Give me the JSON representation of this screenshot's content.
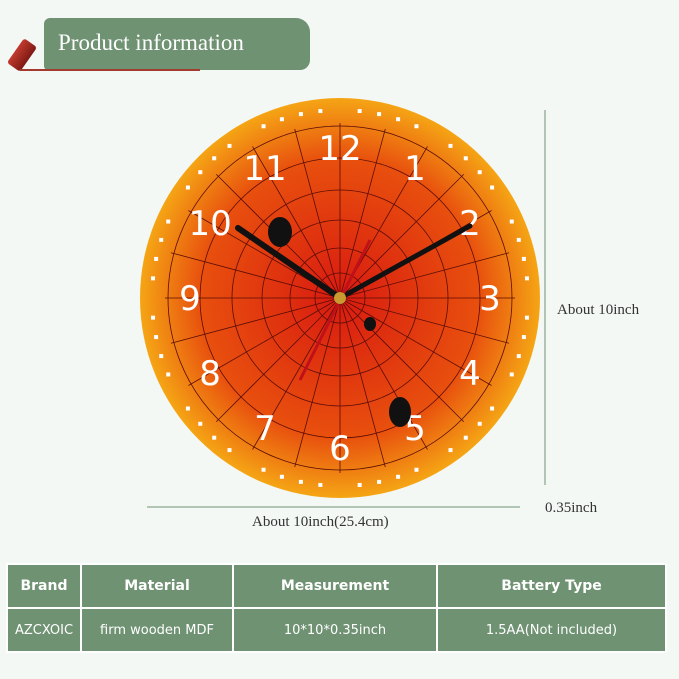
{
  "banner": {
    "title": "Product information"
  },
  "clock": {
    "numerals": [
      "12",
      "1",
      "2",
      "3",
      "4",
      "5",
      "6",
      "7",
      "8",
      "9",
      "10",
      "11"
    ],
    "face_colors": {
      "center": "#d81a10",
      "edge": "#f5a010"
    },
    "hand_color": "#111111",
    "second_hand_color": "#c0101a"
  },
  "dimensions": {
    "height": "About 10inch",
    "width": "About 10inch(25.4cm)",
    "depth": "0.35inch"
  },
  "table": {
    "headers": [
      "Brand",
      "Material",
      "Measurement",
      "Battery Type"
    ],
    "rows": [
      [
        "AZCXOIC",
        "firm wooden MDF",
        "10*10*0.35inch",
        "1.5AA(Not included)"
      ]
    ]
  }
}
